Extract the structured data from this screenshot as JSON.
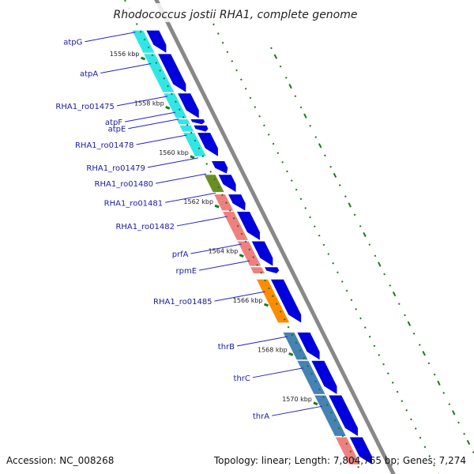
{
  "title": "Rhodococcus jostii RHA1, complete genome",
  "footer": {
    "accession": "Accession: NC_008268",
    "summary": "Topology: linear; Length: 7,804,765 bp; Genes: 7,274"
  },
  "colors": {
    "strand_arrow": "#0000dd",
    "backbone": "#888888",
    "tick": "#1a7a1a",
    "label": "#1a1aa6",
    "leader": "#2222cc"
  },
  "ticks": [
    {
      "label": "1556 kbp",
      "kb": 1556
    },
    {
      "label": "1558 kbp",
      "kb": 1558
    },
    {
      "label": "1560 kbp",
      "kb": 1560
    },
    {
      "label": "1562 kbp",
      "kb": 1562
    },
    {
      "label": "1564 kbp",
      "kb": 1564
    },
    {
      "label": "1566 kbp",
      "kb": 1566
    },
    {
      "label": "1568 kbp",
      "kb": 1568
    },
    {
      "label": "1570 kbp",
      "kb": 1570
    }
  ],
  "genes": [
    {
      "name": "atpG",
      "start": 1554.9,
      "end": 1555.8,
      "color": "#33e6e6"
    },
    {
      "name": "atpA",
      "start": 1555.85,
      "end": 1557.4,
      "color": "#33e6e6"
    },
    {
      "name": "RHA1_ro01475",
      "start": 1557.45,
      "end": 1558.45,
      "color": "#33e6e6"
    },
    {
      "name": "atpF",
      "start": 1558.5,
      "end": 1558.7,
      "color": "#33e6e6"
    },
    {
      "name": "atpE",
      "start": 1558.75,
      "end": 1559.0,
      "color": "#33e6e6"
    },
    {
      "name": "RHA1_ro01478",
      "start": 1559.05,
      "end": 1560.0,
      "color": "#33e6e6"
    },
    {
      "name": "RHA1_ro01479",
      "start": 1560.2,
      "end": 1560.7,
      "color": "#ffffff"
    },
    {
      "name": "RHA1_ro01480",
      "start": 1560.75,
      "end": 1561.45,
      "color": "#6b8e23"
    },
    {
      "name": "RHA1_ro01481",
      "start": 1561.55,
      "end": 1562.2,
      "color": "#f08080"
    },
    {
      "name": "RHA1_ro01482",
      "start": 1562.25,
      "end": 1563.4,
      "color": "#f08080"
    },
    {
      "name": "prfA",
      "start": 1563.45,
      "end": 1564.45,
      "color": "#f08080"
    },
    {
      "name": "rpmE",
      "start": 1564.5,
      "end": 1564.75,
      "color": "#f08080"
    },
    {
      "name": "RHA1_ro01485",
      "start": 1565.0,
      "end": 1566.75,
      "color": "#ff8c00"
    },
    {
      "name": "thrB",
      "start": 1567.15,
      "end": 1568.25,
      "color": "#4682b4"
    },
    {
      "name": "thrC",
      "start": 1568.3,
      "end": 1569.65,
      "color": "#4682b4"
    },
    {
      "name": "thrA",
      "start": 1569.7,
      "end": 1571.35,
      "color": "#4682b4"
    },
    {
      "name": "",
      "start": 1571.4,
      "end": 1572.5,
      "color": "#f08080"
    }
  ]
}
